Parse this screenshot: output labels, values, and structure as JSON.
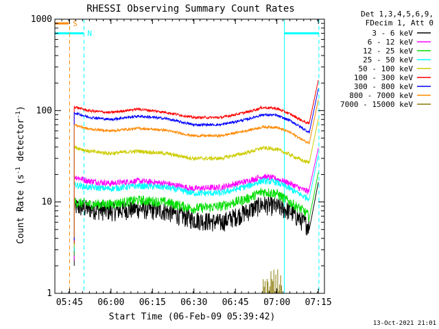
{
  "chart_data": {
    "type": "line",
    "title": "RHESSI Observing Summary Count Rates",
    "xlabel": "Start Time (06-Feb-09 05:39:42)",
    "ylabel": "Count Rate (s",
    "ylabel_sup1": "-1",
    "ylabel_mid": " detector",
    "ylabel_sup2": "-1",
    "ylabel_end": ")",
    "x_unit": "minutes since 05:39:42",
    "xlim": [
      0,
      97.5
    ],
    "ylim": [
      1,
      1000
    ],
    "yscale": "log",
    "xticks": [
      {
        "value": 5.3,
        "label": "05:45"
      },
      {
        "value": 20.3,
        "label": "06:00"
      },
      {
        "value": 35.3,
        "label": "06:15"
      },
      {
        "value": 50.3,
        "label": "06:30"
      },
      {
        "value": 65.3,
        "label": "06:45"
      },
      {
        "value": 80.3,
        "label": "07:00"
      },
      {
        "value": 95.3,
        "label": "07:15"
      }
    ],
    "yticks": [
      {
        "value": 1,
        "label": "1"
      },
      {
        "value": 10,
        "label": "10"
      },
      {
        "value": 100,
        "label": "100"
      },
      {
        "value": 1000,
        "label": "1000"
      }
    ],
    "legend_header": [
      "Det 1,3,4,5,6,9,",
      "FDecim 1, Att 0"
    ],
    "legend_placement": "right",
    "series": [
      {
        "name": "3 - 6 keV",
        "color": "#000000",
        "x": [
          7,
          12,
          20,
          30,
          40,
          50,
          60,
          70,
          75,
          80,
          85,
          90,
          92
        ],
        "values": [
          9,
          8.5,
          8,
          8.5,
          8,
          6.5,
          6,
          8,
          9.5,
          9,
          8,
          6,
          5.5
        ],
        "noise": 0.15
      },
      {
        "name": "6 - 12 keV",
        "color": "#ff00ff",
        "x": [
          7,
          12,
          20,
          30,
          40,
          50,
          60,
          70,
          75,
          80,
          85,
          90,
          92
        ],
        "values": [
          19,
          17,
          16,
          17,
          16,
          14,
          14.5,
          17,
          19,
          18,
          16,
          13.5,
          13
        ],
        "noise": 0.05
      },
      {
        "name": "12 - 25 keV",
        "color": "#00dd00",
        "x": [
          7,
          12,
          20,
          30,
          40,
          50,
          60,
          70,
          75,
          80,
          85,
          90,
          92
        ],
        "values": [
          10,
          9.5,
          9.5,
          10.5,
          10,
          8.5,
          9,
          11,
          13,
          12.5,
          10,
          8,
          7
        ],
        "noise": 0.08
      },
      {
        "name": "25 - 50 keV",
        "color": "#00ffff",
        "x": [
          7,
          12,
          20,
          30,
          40,
          50,
          60,
          70,
          75,
          80,
          85,
          90,
          92
        ],
        "values": [
          15.5,
          14.5,
          14,
          15,
          14.5,
          12.5,
          12.5,
          15,
          17,
          16.5,
          14,
          11.5,
          11
        ],
        "noise": 0.05
      },
      {
        "name": "50 - 100 keV",
        "color": "#cccc00",
        "x": [
          7,
          12,
          20,
          30,
          40,
          50,
          60,
          70,
          75,
          80,
          85,
          90,
          92
        ],
        "values": [
          40,
          36,
          34,
          36,
          34,
          30,
          30,
          35,
          39,
          38,
          33,
          28,
          27
        ],
        "noise": 0.03
      },
      {
        "name": "100 - 300 keV",
        "color": "#ff0000",
        "x": [
          7,
          12,
          20,
          30,
          40,
          50,
          60,
          70,
          75,
          80,
          85,
          90,
          92
        ],
        "values": [
          110,
          100,
          95,
          104,
          96,
          84,
          84,
          97,
          108,
          106,
          92,
          76,
          72
        ],
        "noise": 0.02
      },
      {
        "name": "300 - 800 keV",
        "color": "#0000ff",
        "x": [
          7,
          12,
          20,
          30,
          40,
          50,
          60,
          70,
          75,
          80,
          85,
          90,
          92
        ],
        "values": [
          95,
          85,
          80,
          87,
          82,
          70,
          70,
          81,
          90,
          89,
          78,
          63,
          58
        ],
        "noise": 0.02
      },
      {
        "name": "800 - 7000 keV",
        "color": "#ff8800",
        "x": [
          7,
          12,
          20,
          30,
          40,
          50,
          60,
          70,
          75,
          80,
          85,
          90,
          92
        ],
        "values": [
          70,
          63,
          60,
          64,
          61,
          53,
          53,
          61,
          66,
          66,
          58,
          47,
          44
        ],
        "noise": 0.02
      },
      {
        "name": "7000 - 15000 keV",
        "color": "#887700",
        "x": [],
        "values": [],
        "noise": 0
      }
    ],
    "saa_bars": {
      "color": "#00ffff",
      "level": 700,
      "intervals": [
        [
          0,
          10.5
        ],
        [
          83,
          95.5
        ]
      ]
    },
    "attenuator_bar": {
      "color": "#ff8800",
      "level": 900,
      "interval": [
        0,
        5
      ],
      "label": "S"
    },
    "night_label": {
      "text": "N",
      "color": "#00ffff"
    },
    "vlines": [
      {
        "x": 5.3,
        "color": "#ff8800",
        "style": "dashed"
      },
      {
        "x": 10.5,
        "color": "#00ffff",
        "style": "dashed"
      },
      {
        "x": 83,
        "color": "#00ffff",
        "style": "solid"
      },
      {
        "x": 95.5,
        "color": "#00ffff",
        "style": "dashed"
      }
    ],
    "spikes": {
      "color": "#887700",
      "x_from": 75,
      "x_to": 82,
      "top": 2
    }
  },
  "footer_timestamp": "13-Oct-2021 21:01"
}
